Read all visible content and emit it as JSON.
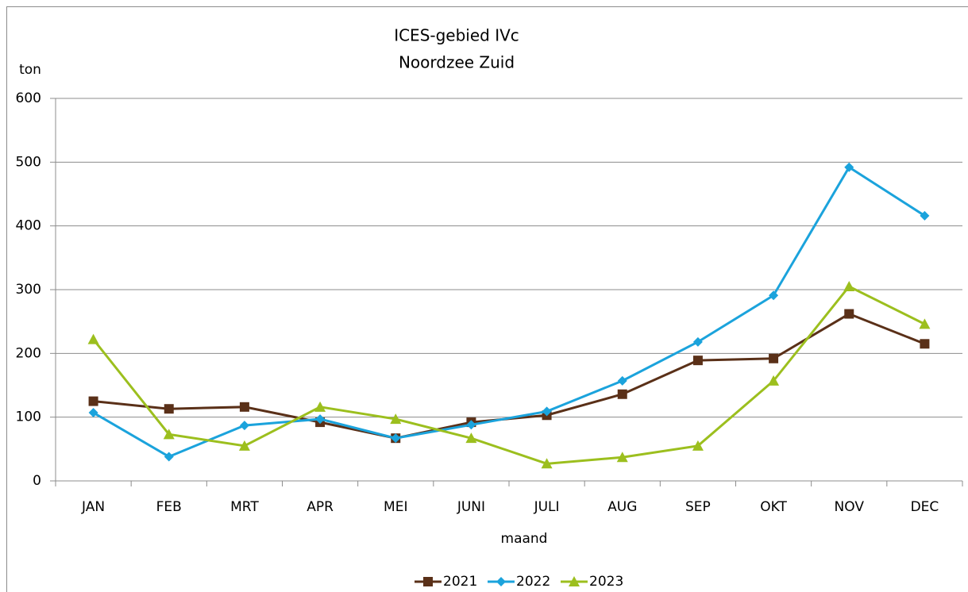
{
  "chart_data": {
    "type": "line",
    "title": "ICES-gebied IVc",
    "subtitle": "Noordzee Zuid",
    "y_label": "ton",
    "x_label": "maand",
    "categories": [
      "JAN",
      "FEB",
      "MRT",
      "APR",
      "MEI",
      "JUNI",
      "JULI",
      "AUG",
      "SEP",
      "OKT",
      "NOV",
      "DEC"
    ],
    "series": [
      {
        "name": "2021",
        "color": "#5a3018",
        "marker": "square",
        "values": [
          125,
          113,
          116,
          92,
          67,
          92,
          103,
          136,
          189,
          192,
          262,
          215
        ]
      },
      {
        "name": "2022",
        "color": "#1ba3dc",
        "marker": "diamond",
        "values": [
          107,
          38,
          87,
          97,
          67,
          88,
          109,
          157,
          218,
          291,
          492,
          416
        ]
      },
      {
        "name": "2023",
        "color": "#9cbf1e",
        "marker": "triangle",
        "values": [
          222,
          73,
          55,
          116,
          97,
          67,
          27,
          37,
          55,
          157,
          305,
          246
        ]
      }
    ],
    "ylim": [
      0,
      600
    ],
    "yticks": [
      0,
      100,
      200,
      300,
      400,
      500,
      600
    ],
    "grid": true,
    "legend": "bottom"
  }
}
